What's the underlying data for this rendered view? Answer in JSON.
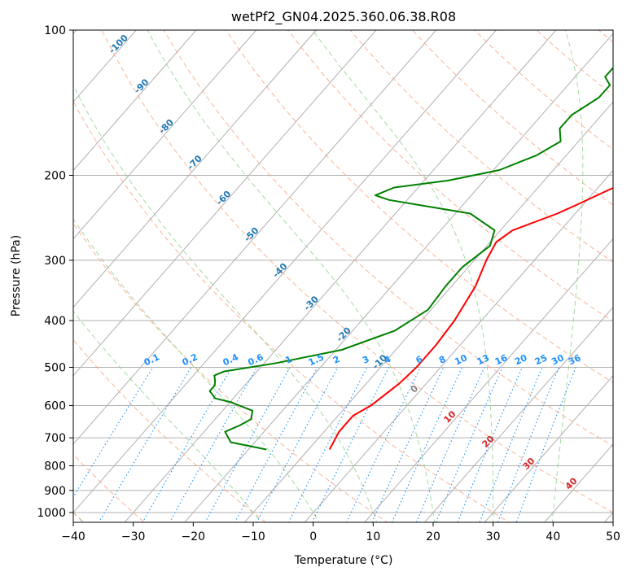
{
  "chart_data": {
    "type": "line",
    "title": "wetPf2_GN04.2025.360.06.38.R08",
    "xlabel": "Temperature (°C)",
    "ylabel": "Pressure (hPa)",
    "xlim": [
      -40,
      50
    ],
    "ylim": [
      1050,
      100
    ],
    "x_ticks": [
      "−40",
      "−30",
      "−20",
      "−10",
      "0",
      "10",
      "20",
      "30",
      "40",
      "50"
    ],
    "x_tick_values": [
      -40,
      -30,
      -20,
      -10,
      0,
      10,
      20,
      30,
      40,
      50
    ],
    "y_ticks": [
      "100",
      "200",
      "300",
      "400",
      "500",
      "600",
      "700",
      "800",
      "900",
      "1000"
    ],
    "y_tick_values": [
      100,
      200,
      300,
      400,
      500,
      600,
      700,
      800,
      900,
      1000
    ],
    "skew_deg_per_log_unit": 70.5,
    "colors": {
      "temperature": "#ff0000",
      "dewpoint": "#008000",
      "isotherm_grid": "#b0b0b0",
      "dry_adiabat": "#f9a07c",
      "moist_adiabat": "#8fcf8a",
      "mixing_ratio": "#1e90ff",
      "label_blue": "#1f77b4",
      "label_red": "#d62728",
      "label_gray": "#7f7f7f",
      "tan": "#d2b48c"
    },
    "series": [
      {
        "name": "Temperature",
        "color": "#ff0000",
        "points": [
          [
            -6.5,
            740
          ],
          [
            -7.5,
            680
          ],
          [
            -7.5,
            630
          ],
          [
            -6.0,
            600
          ],
          [
            -4.5,
            540
          ],
          [
            -4.0,
            500
          ],
          [
            -4.0,
            450
          ],
          [
            -4.5,
            400
          ],
          [
            -6.0,
            340
          ],
          [
            -8.0,
            300
          ],
          [
            -9.0,
            275
          ],
          [
            -8.0,
            260
          ],
          [
            -3.0,
            240
          ],
          [
            -1.0,
            230
          ],
          [
            2.0,
            215
          ],
          [
            8.0,
            190
          ],
          [
            9.5,
            175
          ],
          [
            13.5,
            155
          ],
          [
            14.0,
            135
          ],
          [
            15.5,
            125
          ],
          [
            18.0,
            116
          ],
          [
            21.0,
            108
          ],
          [
            23.0,
            100
          ]
        ]
      },
      {
        "name": "Dewpoint",
        "color": "#008000",
        "points": [
          [
            -17.0,
            740
          ],
          [
            -24.0,
            715
          ],
          [
            -26.5,
            680
          ],
          [
            -25.0,
            660
          ],
          [
            -24.0,
            640
          ],
          [
            -25.0,
            615
          ],
          [
            -30.0,
            590
          ],
          [
            -33.0,
            580
          ],
          [
            -35.0,
            560
          ],
          [
            -35.0,
            545
          ],
          [
            -35.5,
            535
          ],
          [
            -36.5,
            520
          ],
          [
            -35.5,
            510
          ],
          [
            -28.0,
            490
          ],
          [
            -19.0,
            460
          ],
          [
            -13.0,
            420
          ],
          [
            -10.5,
            380
          ],
          [
            -11.0,
            340
          ],
          [
            -11.0,
            310
          ],
          [
            -9.5,
            280
          ],
          [
            -11.0,
            260
          ],
          [
            -17.5,
            240
          ],
          [
            -33.0,
            225
          ],
          [
            -36.0,
            220
          ],
          [
            -34.0,
            212
          ],
          [
            -26.0,
            205
          ],
          [
            -19.0,
            195
          ],
          [
            -15.0,
            182
          ],
          [
            -13.0,
            170
          ],
          [
            -15.0,
            160
          ],
          [
            -15.0,
            150
          ],
          [
            -13.0,
            138
          ],
          [
            -13.0,
            130
          ],
          [
            -15.0,
            125
          ],
          [
            -15.0,
            120
          ],
          [
            -13.0,
            112
          ],
          [
            -10.5,
            105
          ],
          [
            -9.0,
            100
          ]
        ]
      }
    ],
    "dry_adiabats": [
      -30,
      -10,
      10,
      30,
      50,
      70,
      90,
      110,
      130,
      150,
      170,
      190,
      210,
      230
    ],
    "moist_adiabats": [
      -10,
      0,
      10,
      20,
      30,
      40
    ],
    "mixing_ratios": [
      "0.1",
      "0.2",
      "0.4",
      "0.6",
      "1",
      "1.5",
      "2",
      "3",
      "4",
      "6",
      "8",
      "10",
      "13",
      "16",
      "20",
      "25",
      "30",
      "36"
    ],
    "isotherm_labels": [
      {
        "text": "-100",
        "p": 108
      },
      {
        "text": "-90",
        "p": 132
      },
      {
        "text": "-80",
        "p": 160
      },
      {
        "text": "-70",
        "p": 190
      },
      {
        "text": "-60",
        "p": 225
      },
      {
        "text": "-50",
        "p": 268
      },
      {
        "text": "-40",
        "p": 318
      },
      {
        "text": "-30",
        "p": 372
      },
      {
        "text": "-20",
        "p": 432
      },
      {
        "text": "-10",
        "p": 492
      }
    ],
    "lower_labels": [
      {
        "text": "0",
        "color": "#7f7f7f"
      },
      {
        "text": "10",
        "color": "#d62728"
      },
      {
        "text": "20",
        "color": "#d62728"
      },
      {
        "text": "30",
        "color": "#d62728"
      },
      {
        "text": "40",
        "color": "#d62728"
      }
    ]
  }
}
